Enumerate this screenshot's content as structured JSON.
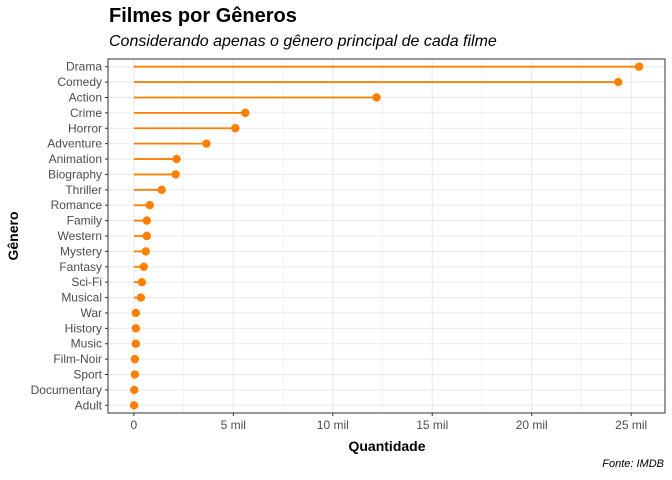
{
  "chart_data": {
    "type": "lollipop",
    "title": "Filmes por Gêneros",
    "subtitle": "Considerando apenas o gênero principal de cada filme",
    "caption": "Fonte: IMDB",
    "xlabel": "Quantidade",
    "ylabel": "Gênero",
    "xlim": [
      -1300,
      26700
    ],
    "xticks": [
      0,
      5000,
      10000,
      15000,
      20000,
      25000
    ],
    "xtick_labels": [
      "0",
      "5 mil",
      "10 mil",
      "15 mil",
      "20 mil",
      "25 mil"
    ],
    "grid": true,
    "legend": "none",
    "colors": {
      "line": "#FF7F00",
      "point": "#FF7F00",
      "grid": "#EBEBEB",
      "border": "#333333"
    },
    "categories": [
      "Drama",
      "Comedy",
      "Action",
      "Crime",
      "Horror",
      "Adventure",
      "Animation",
      "Biography",
      "Thriller",
      "Romance",
      "Family",
      "Western",
      "Mystery",
      "Fantasy",
      "Sci-Fi",
      "Musical",
      "War",
      "History",
      "Music",
      "Film-Noir",
      "Sport",
      "Documentary",
      "Adult"
    ],
    "values": [
      25400,
      24350,
      12200,
      5600,
      5100,
      3650,
      2150,
      2100,
      1400,
      800,
      650,
      650,
      600,
      500,
      400,
      350,
      100,
      100,
      100,
      50,
      50,
      20,
      10
    ]
  }
}
